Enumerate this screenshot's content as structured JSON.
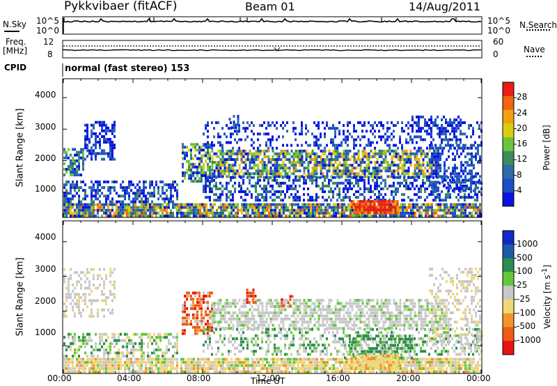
{
  "header": {
    "station": "Pykkvibaer (fitACF)",
    "beam": "Beam 01",
    "date": "14/Aug/2011"
  },
  "status_panels": {
    "nsky_label": "N.Sky",
    "nsearch_label": "N.Search",
    "freq_label_1": "Freq.",
    "freq_label_2": "[MHz]",
    "nave_label": "Nave",
    "cpid_label": "CPID",
    "cpid_text": "normal (fast stereo) 153",
    "nsky_ticks_left": [
      "10^5",
      "10^0"
    ],
    "nsky_ticks_right": [
      "10^5",
      "10^0"
    ],
    "freq_ticks_left": [
      "12",
      "8"
    ],
    "freq_ticks_right": [
      "60",
      "0"
    ]
  },
  "chart_data": [
    {
      "type": "heatmap",
      "name_key": "power",
      "ylabel": "Slant Range [km]",
      "xlabel": "",
      "y_ticks": [
        "1000",
        "2000",
        "3000",
        "4000"
      ],
      "y_range_km": [
        200,
        4600
      ],
      "x_range_hours": [
        0,
        24
      ],
      "colorbar_label": "Power [dB]",
      "colorbar_ticks": [
        "4",
        "8",
        "12",
        "16",
        "20",
        "24",
        "28"
      ],
      "colorbar_colors": [
        "#0a14e0",
        "#1c4fc4",
        "#2d6aa8",
        "#3c8c5a",
        "#6cc43c",
        "#d8cc14",
        "#f0a010",
        "#f06414",
        "#e81e14"
      ]
    },
    {
      "type": "heatmap",
      "name_key": "velocity",
      "ylabel": "Slant Range [km]",
      "xlabel": "Time UT",
      "y_ticks": [
        "1000",
        "2000",
        "3000",
        "4000"
      ],
      "y_range_km": [
        200,
        4600
      ],
      "x_range_hours": [
        0,
        24
      ],
      "x_ticks": [
        "00:00",
        "04:00",
        "08:00",
        "12:00",
        "16:00",
        "20:00",
        "00:00"
      ],
      "colorbar_label": "Velocity [m s^-1]",
      "colorbar_ticks": [
        "1000",
        "500",
        "100",
        "25",
        "-25",
        "-100",
        "-500",
        "-1000"
      ],
      "colorbar_colors": [
        "#1428c8",
        "#1e5aa8",
        "#2d8c50",
        "#64c83c",
        "#c8c8c8",
        "#f0d878",
        "#f09628",
        "#f05a14",
        "#e81414"
      ]
    }
  ]
}
